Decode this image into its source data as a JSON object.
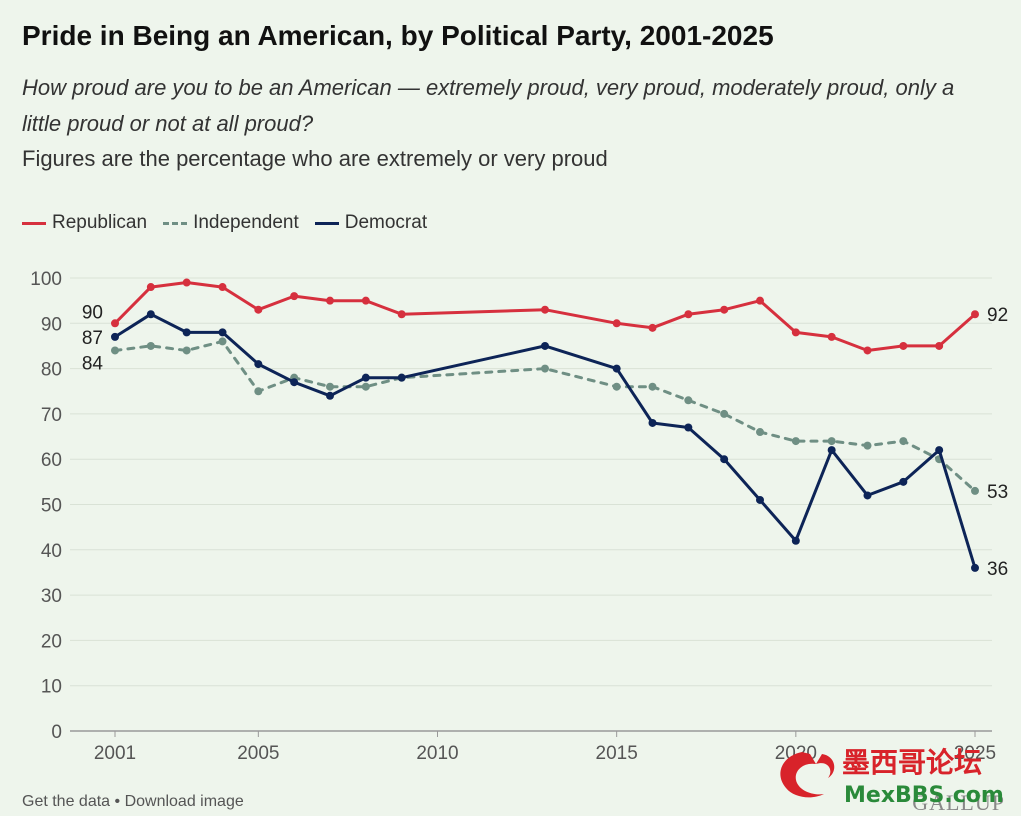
{
  "title": "Pride in Being an American, by Political Party, 2001-2025",
  "question": "How proud are you to be an American — extremely proud, very proud, moderately proud, only a little proud or not at all proud?",
  "note": "Figures are the percentage who are extremely or very proud",
  "footer": {
    "get_data": "Get the data",
    "separator": " • ",
    "download": "Download image"
  },
  "brand": "GALLUP",
  "watermark": {
    "text_cn": "墨西哥论坛",
    "text_en": "MexBBS.com"
  },
  "colors": {
    "republican": "#d6303e",
    "independent": "#6f8f84",
    "democrat": "#0d2457",
    "grid": "#d9e2d6",
    "axis_text": "#555555"
  },
  "chart_data": {
    "type": "line",
    "title": "Pride in Being an American, by Political Party, 2001-2025",
    "xlabel": "",
    "ylabel": "",
    "xlim": [
      2001,
      2025
    ],
    "ylim": [
      0,
      100
    ],
    "yticks": [
      0,
      10,
      20,
      30,
      40,
      50,
      60,
      70,
      80,
      90,
      100
    ],
    "xticks": [
      2001,
      2005,
      2010,
      2015,
      2020,
      2025
    ],
    "grid": true,
    "legend": "top-left",
    "series": [
      {
        "name": "Republican",
        "style": "solid",
        "color": "#d6303e",
        "x": [
          2001,
          2002,
          2003,
          2004,
          2005,
          2006,
          2007,
          2008,
          2009,
          2013,
          2015,
          2016,
          2017,
          2018,
          2019,
          2020,
          2021,
          2022,
          2023,
          2024,
          2025
        ],
        "values": [
          90,
          98,
          99,
          98,
          93,
          96,
          95,
          95,
          92,
          93,
          90,
          89,
          92,
          93,
          95,
          88,
          87,
          84,
          85,
          85,
          92
        ],
        "start_label": "90",
        "end_label": "92"
      },
      {
        "name": "Independent",
        "style": "dashed",
        "color": "#6f8f84",
        "x": [
          2001,
          2002,
          2003,
          2004,
          2005,
          2006,
          2007,
          2008,
          2009,
          2013,
          2015,
          2016,
          2017,
          2018,
          2019,
          2020,
          2021,
          2022,
          2023,
          2024,
          2025
        ],
        "values": [
          84,
          85,
          84,
          86,
          75,
          78,
          76,
          76,
          78,
          80,
          76,
          76,
          73,
          70,
          66,
          64,
          64,
          63,
          64,
          60,
          53
        ],
        "start_label": "84",
        "end_label": "53"
      },
      {
        "name": "Democrat",
        "style": "solid",
        "color": "#0d2457",
        "x": [
          2001,
          2002,
          2003,
          2004,
          2005,
          2006,
          2007,
          2008,
          2009,
          2013,
          2015,
          2016,
          2017,
          2018,
          2019,
          2020,
          2021,
          2022,
          2023,
          2024,
          2025
        ],
        "values": [
          87,
          92,
          88,
          88,
          81,
          77,
          74,
          78,
          78,
          85,
          80,
          68,
          67,
          60,
          51,
          42,
          62,
          52,
          55,
          62,
          36
        ],
        "start_label": "87",
        "end_label": "36"
      }
    ]
  }
}
